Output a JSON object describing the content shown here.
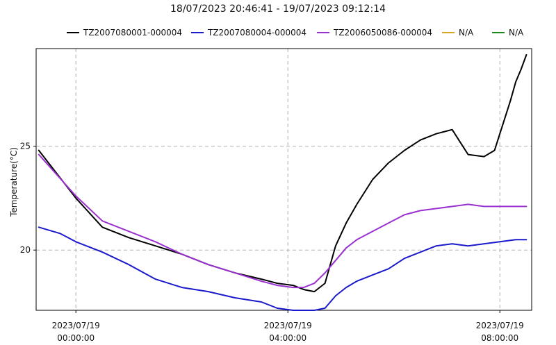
{
  "chart_data": {
    "type": "line",
    "title": "18/07/2023 20:46:41 - 19/07/2023 09:12:14",
    "xlabel": "",
    "ylabel": "Temperature(°C)",
    "xlim": [
      0.25,
      9.6
    ],
    "ylim": [
      17.1,
      29.7
    ],
    "grid": true,
    "legend_position": "top",
    "x_unit": "hours after 2023/07/18 23:00",
    "y_ticks": [
      {
        "value": 20,
        "label": "20"
      },
      {
        "value": 25,
        "label": "25"
      }
    ],
    "x_ticks": [
      {
        "value": 1,
        "date": "2023/07/19",
        "time": "00:00:00"
      },
      {
        "value": 5,
        "date": "2023/07/19",
        "time": "04:00:00"
      },
      {
        "value": 9,
        "date": "2023/07/19",
        "time": "08:00:00"
      }
    ],
    "series": [
      {
        "name": "TZ2007080001-000004",
        "color": "#000000",
        "x": [
          0.3,
          1.0,
          1.5,
          2.0,
          2.5,
          3.0,
          3.5,
          4.0,
          4.5,
          4.8,
          5.1,
          5.3,
          5.5,
          5.7,
          5.9,
          6.1,
          6.3,
          6.6,
          6.9,
          7.2,
          7.5,
          7.8,
          8.1,
          8.4,
          8.7,
          8.9,
          9.0,
          9.1,
          9.2,
          9.3,
          9.4,
          9.5
        ],
        "values": [
          24.8,
          22.5,
          21.1,
          20.6,
          20.2,
          19.8,
          19.3,
          18.9,
          18.6,
          18.4,
          18.3,
          18.1,
          18.0,
          18.4,
          20.2,
          21.3,
          22.2,
          23.4,
          24.2,
          24.8,
          25.3,
          25.6,
          25.8,
          24.6,
          24.5,
          24.8,
          25.6,
          26.4,
          27.2,
          28.1,
          28.7,
          29.4
        ]
      },
      {
        "name": "TZ2007080004-000004",
        "color": "#1a1acc",
        "x": [
          0.3,
          0.7,
          1.0,
          1.5,
          2.0,
          2.5,
          3.0,
          3.5,
          4.0,
          4.5,
          4.8,
          5.1,
          5.5,
          5.7,
          5.9,
          6.1,
          6.3,
          6.6,
          6.9,
          7.2,
          7.5,
          7.8,
          8.1,
          8.4,
          8.7,
          9.0,
          9.3,
          9.5
        ],
        "values": [
          21.1,
          20.8,
          20.4,
          19.9,
          19.3,
          18.6,
          18.2,
          18.0,
          17.7,
          17.5,
          17.2,
          17.1,
          17.1,
          17.2,
          17.8,
          18.2,
          18.5,
          18.8,
          19.1,
          19.6,
          19.9,
          20.2,
          20.3,
          20.2,
          20.3,
          20.4,
          20.5,
          20.5
        ]
      },
      {
        "name": "TZ2006050086-000004",
        "color": "#9b30d0",
        "x": [
          0.3,
          1.0,
          1.5,
          2.0,
          2.5,
          3.0,
          3.5,
          4.0,
          4.5,
          4.8,
          5.1,
          5.3,
          5.5,
          5.7,
          5.9,
          6.1,
          6.3,
          6.6,
          6.9,
          7.2,
          7.5,
          7.8,
          8.1,
          8.4,
          8.7,
          9.0,
          9.3,
          9.5
        ],
        "values": [
          24.6,
          22.6,
          21.4,
          20.9,
          20.4,
          19.8,
          19.3,
          18.9,
          18.5,
          18.3,
          18.2,
          18.2,
          18.4,
          18.9,
          19.5,
          20.1,
          20.5,
          20.9,
          21.3,
          21.7,
          21.9,
          22.0,
          22.1,
          22.2,
          22.1,
          22.1,
          22.1,
          22.1
        ]
      },
      {
        "name": "N/A",
        "color": "#d9a520",
        "x": [],
        "values": []
      },
      {
        "name": "N/A",
        "color": "#1a8a1a",
        "x": [],
        "values": []
      }
    ]
  }
}
